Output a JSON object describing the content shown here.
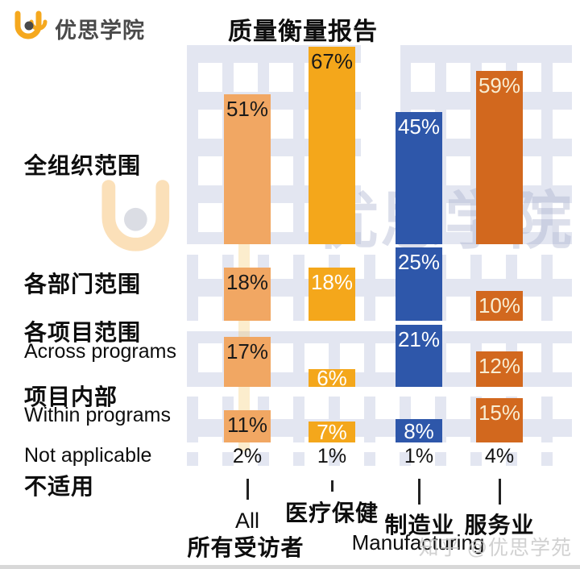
{
  "header": {
    "logo_text": "优思学院",
    "title": "质量衡量报告"
  },
  "watermarks": {
    "center_text": "优思学院",
    "bottom_right": "知乎 @优思学苑"
  },
  "palette": {
    "light_orange": "#F1A763",
    "amber": "#F4A71B",
    "blue": "#2E57AA",
    "dark_orange": "#D2681E",
    "facade": "#E3E6F1",
    "page": "#FFFFFF"
  },
  "chart_data": {
    "type": "bar",
    "title": "质量衡量报告",
    "unit": "%",
    "orientation": "grouped-vertical",
    "legend_position": "none",
    "grid": false,
    "columns": [
      {
        "id": "all",
        "label_en": "All",
        "label_zh": "所有受访者",
        "color": "#F1A763"
      },
      {
        "id": "healthcare",
        "label_en": "",
        "label_zh": "医疗保健",
        "color": "#F4A71B"
      },
      {
        "id": "manufacturing",
        "label_en": "Manufacturing",
        "label_zh": "制造业",
        "color": "#2E57AA"
      },
      {
        "id": "services",
        "label_en": "",
        "label_zh": "服务业",
        "color": "#D2681E"
      }
    ],
    "groups": [
      {
        "label_zh": "全组织范围",
        "label_en": "",
        "values": [
          51,
          67,
          45,
          59
        ],
        "value_label_colors": [
          "#1A1A1A",
          "#1A1A1A",
          "#FFFFFF",
          "#F8EDD2"
        ]
      },
      {
        "label_zh": "各部门范围",
        "label_en": "",
        "values": [
          18,
          18,
          25,
          10
        ],
        "value_label_colors": [
          "#1A1A1A",
          "#FFFFFF",
          "#FFFFFF",
          "#F8EDD2"
        ]
      },
      {
        "label_zh": "各项目范围",
        "label_en": "Across programs",
        "values": [
          17,
          6,
          21,
          12
        ],
        "value_label_colors": [
          "#1A1A1A",
          "#FFFFFF",
          "#FFFFFF",
          "#F8EDD2"
        ]
      },
      {
        "label_zh": "项目内部",
        "label_en": "Within programs",
        "values": [
          11,
          7,
          8,
          15
        ],
        "value_label_colors": [
          "#1A1A1A",
          "#FFFFFF",
          "#FFFFFF",
          "#F8EDD2"
        ]
      },
      {
        "label_zh": "不适用",
        "label_en": "Not applicable",
        "values": [
          2,
          1,
          1,
          4
        ],
        "display": "text"
      }
    ]
  }
}
